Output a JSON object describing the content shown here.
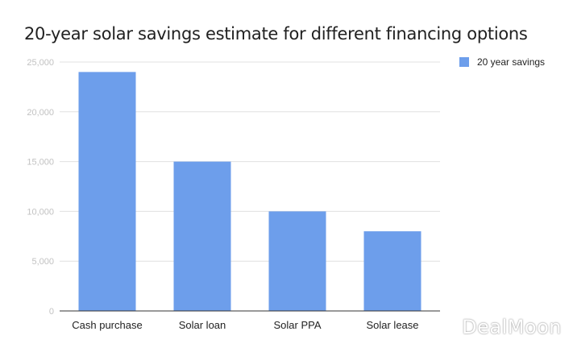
{
  "chart_data": {
    "type": "bar",
    "title": "20-year solar savings estimate for different financing options",
    "categories": [
      "Cash purchase",
      "Solar loan",
      "Solar PPA",
      "Solar lease"
    ],
    "series": [
      {
        "name": "20 year savings",
        "values": [
          24000,
          15000,
          10000,
          8000
        ]
      }
    ],
    "y_ticks": [
      "0",
      "5,000",
      "10,000",
      "15,000",
      "20,000",
      "25,000"
    ],
    "y_tick_values": [
      0,
      5000,
      10000,
      15000,
      20000,
      25000
    ],
    "ylim": [
      0,
      25000
    ],
    "xlabel": "",
    "ylabel": "",
    "grid": true,
    "legend_position": "top-right",
    "colors": {
      "bar": "#6d9eeb",
      "grid": "#e0e0e0",
      "axis": "#333333",
      "tick_text": "#c2c2c2",
      "label_text": "#222222"
    }
  },
  "watermark": "DealMoon"
}
